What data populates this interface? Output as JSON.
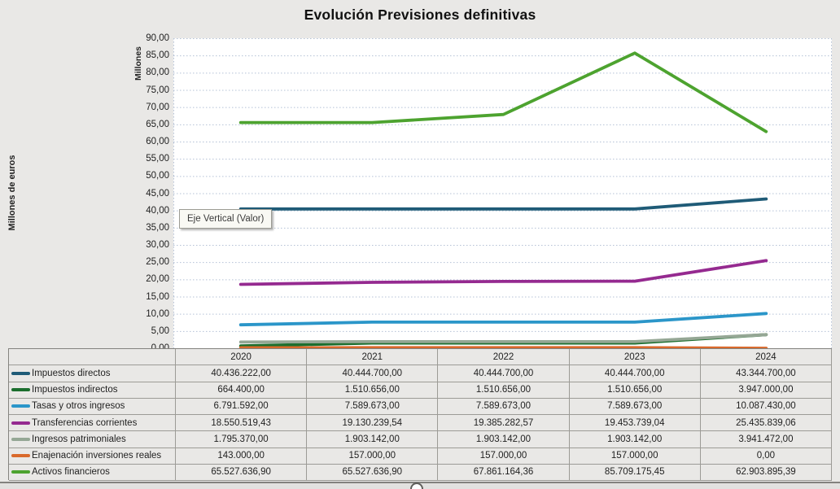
{
  "title": "Evolución Previsiones definitivas",
  "axis": {
    "y_outer_label": "Millones de euros",
    "y_inner_label": "Millones",
    "y_ticks": [
      "90,00",
      "85,00",
      "80,00",
      "75,00",
      "70,00",
      "65,00",
      "60,00",
      "55,00",
      "50,00",
      "45,00",
      "40,00",
      "35,00",
      "30,00",
      "25,00",
      "20,00",
      "15,00",
      "10,00",
      "5,00",
      "0,00"
    ]
  },
  "tooltip": {
    "text": "Eje Vertical (Valor)"
  },
  "chart_data": {
    "type": "line",
    "title": "Evolución Previsiones definitivas",
    "categories": [
      "2020",
      "2021",
      "2022",
      "2023",
      "2024"
    ],
    "ylabel": "Millones de euros",
    "y_axis_unit_label": "Millones",
    "ylim": [
      0,
      90
    ],
    "y_tick_step": 5,
    "grid": "horizontal-dotted",
    "legend_position": "table-left",
    "series": [
      {
        "name": "Impuestos directos",
        "color": "#1f5b77",
        "values": [
          40.436222,
          40.4447,
          40.4447,
          40.4447,
          43.3447
        ]
      },
      {
        "name": "Impuestos indirectos",
        "color": "#1b6e2d",
        "values": [
          0.6644,
          1.510656,
          1.510656,
          1.510656,
          3.947
        ]
      },
      {
        "name": "Tasas y otros ingresos",
        "color": "#2b96c9",
        "values": [
          6.791592,
          7.589673,
          7.589673,
          7.589673,
          10.08743
        ]
      },
      {
        "name": "Transferencias corrientes",
        "color": "#952a90",
        "values": [
          18.55051943,
          19.13023954,
          19.38528257,
          19.45373904,
          25.43583906
        ]
      },
      {
        "name": "Ingresos patrimoniales",
        "color": "#95a795",
        "values": [
          1.79537,
          1.903142,
          1.903142,
          1.903142,
          3.941472
        ]
      },
      {
        "name": "Enajenación inversiones reales",
        "color": "#d9692b",
        "values": [
          0.143,
          0.157,
          0.157,
          0.157,
          0
        ]
      },
      {
        "name": "Activos financieros",
        "color": "#4da32f",
        "values": [
          65.5276369,
          65.5276369,
          67.86116436,
          85.70917545,
          62.90389539
        ]
      }
    ]
  },
  "table": {
    "year_headers": [
      "2020",
      "2021",
      "2022",
      "2023",
      "2024"
    ],
    "rows": [
      {
        "label": "Impuestos directos",
        "color": "#1f5b77",
        "values": [
          "40.436.222,00",
          "40.444.700,00",
          "40.444.700,00",
          "40.444.700,00",
          "43.344.700,00"
        ]
      },
      {
        "label": "Impuestos indirectos",
        "color": "#1b6e2d",
        "values": [
          "664.400,00",
          "1.510.656,00",
          "1.510.656,00",
          "1.510.656,00",
          "3.947.000,00"
        ]
      },
      {
        "label": "Tasas y otros ingresos",
        "color": "#2b96c9",
        "values": [
          "6.791.592,00",
          "7.589.673,00",
          "7.589.673,00",
          "7.589.673,00",
          "10.087.430,00"
        ]
      },
      {
        "label": "Transferencias corrientes",
        "color": "#952a90",
        "values": [
          "18.550.519,43",
          "19.130.239,54",
          "19.385.282,57",
          "19.453.739,04",
          "25.435.839,06"
        ]
      },
      {
        "label": "Ingresos patrimoniales",
        "color": "#95a795",
        "values": [
          "1.795.370,00",
          "1.903.142,00",
          "1.903.142,00",
          "1.903.142,00",
          "3.941.472,00"
        ]
      },
      {
        "label": "Enajenación inversiones reales",
        "color": "#d9692b",
        "values": [
          "143.000,00",
          "157.000,00",
          "157.000,00",
          "157.000,00",
          "0,00"
        ]
      },
      {
        "label": "Activos financieros",
        "color": "#4da32f",
        "values": [
          "65.527.636,90",
          "65.527.636,90",
          "67.861.164,36",
          "85.709.175,45",
          "62.903.895,39"
        ]
      }
    ]
  },
  "colors": {
    "page_bg": "#e9e8e6",
    "plot_bg": "#ffffff",
    "gridline": "#b4c1d6",
    "table_border": "#9c9b96",
    "title_text": "#111111"
  }
}
